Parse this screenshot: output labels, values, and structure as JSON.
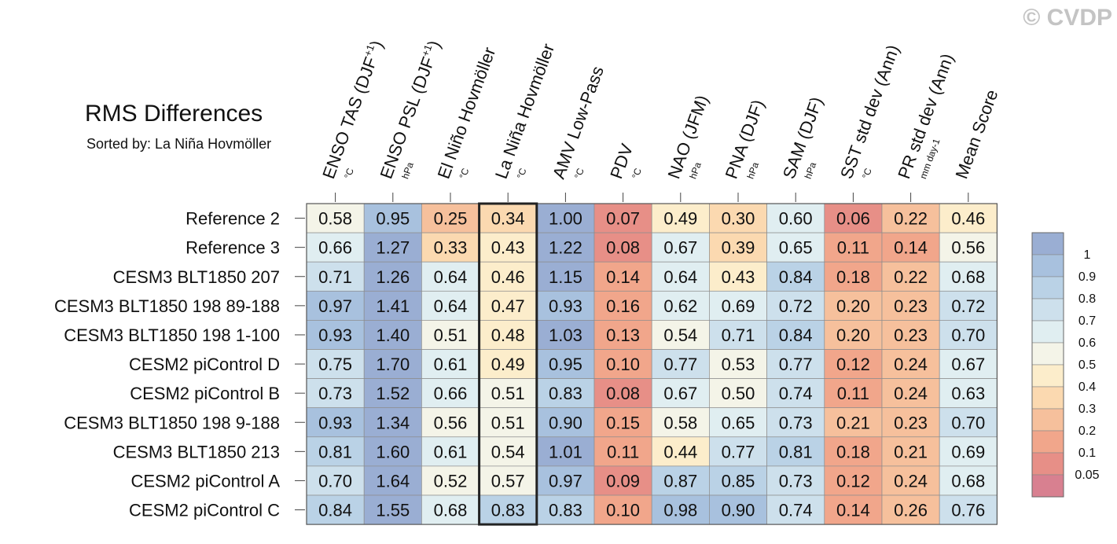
{
  "watermark": "© CVDP",
  "chart_data": {
    "type": "heatmap",
    "title": "RMS Differences",
    "subtitle": "Sorted by: La Niña Hovmöller",
    "highlighted_column": "La Niña Hovmöller",
    "columns": [
      {
        "label": "ENSO TAS (DJF",
        "sup": "+1",
        "close": ")",
        "unit": "°C"
      },
      {
        "label": "ENSO PSL (DJF",
        "sup": "+1",
        "close": ")",
        "unit": "hPa"
      },
      {
        "label": "El Niño Hovmöller",
        "sup": "",
        "close": "",
        "unit": "°C"
      },
      {
        "label": "La Niña Hovmöller",
        "sup": "",
        "close": "",
        "unit": "°C"
      },
      {
        "label": "AMV Low-Pass",
        "sup": "",
        "close": "",
        "unit": "°C"
      },
      {
        "label": "PDV",
        "sup": "",
        "close": "",
        "unit": "°C"
      },
      {
        "label": "NAO (JFM)",
        "sup": "",
        "close": "",
        "unit": "hPa"
      },
      {
        "label": "PNA (DJF)",
        "sup": "",
        "close": "",
        "unit": "hPa"
      },
      {
        "label": "SAM (DJF)",
        "sup": "",
        "close": "",
        "unit": "hPa"
      },
      {
        "label": "SST std dev (Ann)",
        "sup": "",
        "close": "",
        "unit": "°C"
      },
      {
        "label": "PR std dev (Ann)",
        "sup": "",
        "close": "",
        "unit": "mm day-1"
      },
      {
        "label": "Mean Score",
        "sup": "",
        "close": "",
        "unit": ""
      }
    ],
    "rows": [
      {
        "name": "Reference 2",
        "values": [
          0.58,
          0.95,
          0.25,
          0.34,
          1.0,
          0.07,
          0.49,
          0.3,
          0.6,
          0.06,
          0.22,
          0.46
        ]
      },
      {
        "name": "Reference 3",
        "values": [
          0.66,
          1.27,
          0.33,
          0.43,
          1.22,
          0.08,
          0.67,
          0.39,
          0.65,
          0.11,
          0.14,
          0.56
        ]
      },
      {
        "name": "CESM3 BLT1850 207",
        "values": [
          0.71,
          1.26,
          0.64,
          0.46,
          1.15,
          0.14,
          0.64,
          0.43,
          0.84,
          0.18,
          0.22,
          0.68
        ]
      },
      {
        "name": "CESM3 BLT1850 198 89-188",
        "values": [
          0.97,
          1.41,
          0.64,
          0.47,
          0.93,
          0.16,
          0.62,
          0.69,
          0.72,
          0.2,
          0.23,
          0.72
        ]
      },
      {
        "name": "CESM3 BLT1850 198 1-100",
        "values": [
          0.93,
          1.4,
          0.51,
          0.48,
          1.03,
          0.13,
          0.54,
          0.71,
          0.84,
          0.2,
          0.23,
          0.7
        ]
      },
      {
        "name": "CESM2 piControl D",
        "values": [
          0.75,
          1.7,
          0.61,
          0.49,
          0.95,
          0.1,
          0.77,
          0.53,
          0.77,
          0.12,
          0.24,
          0.67
        ]
      },
      {
        "name": "CESM2 piControl B",
        "values": [
          0.73,
          1.52,
          0.66,
          0.51,
          0.83,
          0.08,
          0.67,
          0.5,
          0.74,
          0.11,
          0.24,
          0.63
        ]
      },
      {
        "name": "CESM3 BLT1850 198 9-188",
        "values": [
          0.93,
          1.34,
          0.56,
          0.51,
          0.9,
          0.15,
          0.58,
          0.65,
          0.73,
          0.21,
          0.23,
          0.7
        ]
      },
      {
        "name": "CESM3 BLT1850 213",
        "values": [
          0.81,
          1.6,
          0.61,
          0.54,
          1.01,
          0.11,
          0.44,
          0.77,
          0.81,
          0.18,
          0.21,
          0.69
        ]
      },
      {
        "name": "CESM2 piControl A",
        "values": [
          0.7,
          1.64,
          0.52,
          0.57,
          0.97,
          0.09,
          0.87,
          0.85,
          0.73,
          0.12,
          0.24,
          0.68
        ]
      },
      {
        "name": "CESM2 piControl C",
        "values": [
          0.84,
          1.55,
          0.68,
          0.83,
          0.83,
          0.1,
          0.98,
          0.9,
          0.74,
          0.14,
          0.26,
          0.76
        ]
      }
    ],
    "colorbar": {
      "levels": [
        "1",
        "0.9",
        "0.8",
        "0.7",
        "0.6",
        "0.5",
        "0.4",
        "0.3",
        "0.2",
        "0.1",
        "0.05"
      ],
      "bins": [
        {
          "min": 1.0,
          "color": "#9aaed3"
        },
        {
          "min": 0.9,
          "color": "#a8c1de"
        },
        {
          "min": 0.8,
          "color": "#bad2e6"
        },
        {
          "min": 0.7,
          "color": "#cde0ec"
        },
        {
          "min": 0.6,
          "color": "#e0eef1"
        },
        {
          "min": 0.5,
          "color": "#f4f4e8"
        },
        {
          "min": 0.4,
          "color": "#fcedcb"
        },
        {
          "min": 0.3,
          "color": "#fbd9b0"
        },
        {
          "min": 0.2,
          "color": "#f6c09c"
        },
        {
          "min": 0.1,
          "color": "#f1a68b"
        },
        {
          "min": 0.05,
          "color": "#e78f87"
        },
        {
          "min": 0.0,
          "color": "#d88090"
        }
      ]
    }
  }
}
